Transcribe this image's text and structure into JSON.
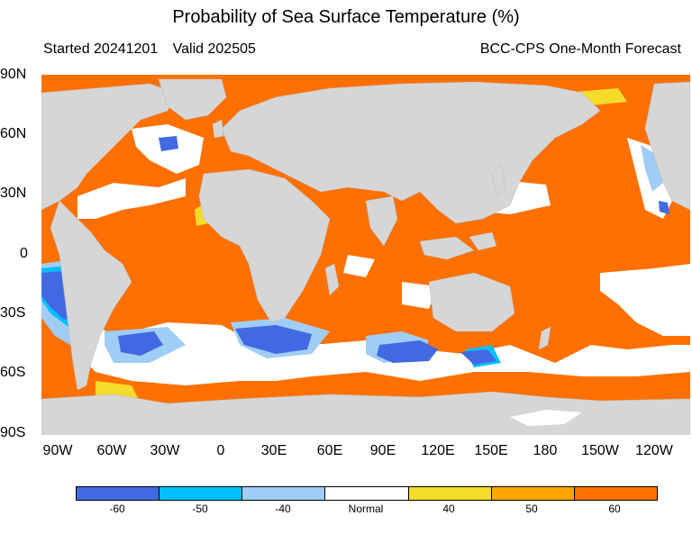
{
  "title": "Probability of Sea Surface Temperature (%)",
  "started_label": "Started 20241201",
  "valid_label": "Valid 202505",
  "forecast_label": "BCC-CPS One-Month Forecast",
  "lat_labels": [
    "90N",
    "60N",
    "30N",
    "0",
    "30S",
    "60S",
    "90S"
  ],
  "lon_labels": [
    "90W",
    "60W",
    "30W",
    "0",
    "30E",
    "60E",
    "90E",
    "120E",
    "150E",
    "180",
    "150W",
    "120W"
  ],
  "colorbar": {
    "labels": [
      "-60",
      "-50",
      "-40",
      "Normal",
      "40",
      "50",
      "60"
    ],
    "colors": [
      "#4169e1",
      "#00bfff",
      "#a0cdf5",
      "#ffffff",
      "#f5dc2a",
      "#ffa500",
      "#ff7000"
    ]
  },
  "colors": {
    "land": "#d6d6d6",
    "ocean_warm": "#ff7000"
  }
}
